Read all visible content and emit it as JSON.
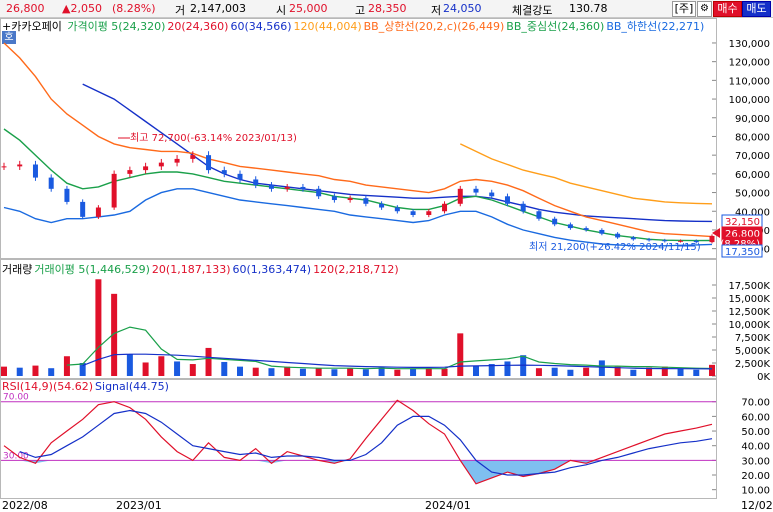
{
  "header": {
    "price": "26,800",
    "change": "▲2,050",
    "change_pct": "(8.28%)",
    "volume_label": "거",
    "volume": "2,147,003",
    "open_label": "시",
    "open": "25,000",
    "high_label": "고",
    "high": "28,350",
    "low_label": "저",
    "low": "24,050",
    "strength_label": "체결강도",
    "strength": "130.78",
    "unit_btn": "[주]",
    "gear_icon": "gear-icon",
    "buy_btn": "매수",
    "sell_btn": "매도"
  },
  "price_panel": {
    "hoga_btn": "호",
    "stock_name": "+카카오페이",
    "legend": [
      {
        "text": "가격이평 5(24,320)",
        "color": "#1aa04a"
      },
      {
        "text": "20(24,360)",
        "color": "#e0102a"
      },
      {
        "text": "60(34,566)",
        "color": "#1530c8"
      },
      {
        "text": "120(44,004)",
        "color": "#ff9e1a"
      },
      {
        "text": "BB_상한선(20,2,c)(26,449)",
        "color": "#ff6a1a"
      },
      {
        "text": "BB_중심선(24,360)",
        "color": "#1aa04a"
      },
      {
        "text": "BB_하한선(22,271)",
        "color": "#1a6ae0"
      }
    ],
    "high_annotation": "최고 72,700(-63.14% 2023/01/13)",
    "low_annotation": "최저 21,200(+26.42% 2024/11/15)",
    "tag_upper": "32,150",
    "tag_price": "26,800",
    "tag_pct": "(8.28%)",
    "tag_lower": "17,350",
    "y_ticks": [
      "130,000",
      "120,000",
      "110,000",
      "100,000",
      "90,000",
      "80,000",
      "70,000",
      "60,000",
      "50,000",
      "40,000",
      "30,000",
      "20,000"
    ]
  },
  "volume_panel": {
    "legend": [
      {
        "text": "거래량",
        "color": "#000000"
      },
      {
        "text": "거래이평 5(1,446,529)",
        "color": "#1aa04a"
      },
      {
        "text": "20(1,187,133)",
        "color": "#e0102a"
      },
      {
        "text": "60(1,363,474)",
        "color": "#1530c8"
      },
      {
        "text": "120(2,218,712)",
        "color": "#e0102a"
      }
    ],
    "y_ticks": [
      "17,500K",
      "15,000K",
      "12,500K",
      "10,000K",
      "7,500K",
      "5,000K",
      "2,500K",
      "0K"
    ]
  },
  "rsi_panel": {
    "legend": [
      {
        "text": "RSI(14,9)(54.62)",
        "color": "#e0102a"
      },
      {
        "text": "Signal(44.75)",
        "color": "#1530c8"
      }
    ],
    "level_high_label": "70.00",
    "level_low_label": "30.00",
    "y_ticks": [
      "70.00",
      "60.00",
      "50.00",
      "40.00",
      "30.00",
      "20.00",
      "10.00"
    ]
  },
  "x_axis": {
    "labels": [
      "2022/08",
      "2023/01",
      "2024/01",
      "12/02"
    ]
  },
  "chart_data": [
    {
      "type": "line",
      "name": "price",
      "ylim": [
        15000,
        138000
      ],
      "y_ticks": [
        130000,
        120000,
        110000,
        100000,
        90000,
        80000,
        70000,
        60000,
        50000,
        40000,
        30000,
        20000
      ],
      "series": [
        {
          "name": "종가",
          "color": "#e0102a",
          "values": [
            64000,
            65000,
            58000,
            52000,
            45000,
            37000,
            42000,
            60000,
            62000,
            64000,
            66000,
            68000,
            70000,
            62000,
            60000,
            57000,
            54000,
            52000,
            53000,
            52000,
            48000,
            46000,
            47000,
            44000,
            42000,
            40000,
            38000,
            40000,
            44000,
            52000,
            50000,
            48000,
            44000,
            40000,
            36000,
            33000,
            31000,
            30000,
            28000,
            26000,
            25000,
            24500,
            24000,
            24200,
            23500,
            26800
          ]
        },
        {
          "name": "120",
          "color": "#ff9e1a",
          "values": [
            null,
            null,
            null,
            null,
            null,
            null,
            null,
            null,
            null,
            null,
            null,
            null,
            null,
            null,
            null,
            null,
            null,
            null,
            null,
            null,
            null,
            null,
            null,
            null,
            null,
            null,
            null,
            null,
            null,
            76000,
            72000,
            68000,
            65000,
            62000,
            60000,
            58000,
            55000,
            53000,
            51000,
            49000,
            47000,
            46000,
            45000,
            44500,
            44200,
            44004
          ]
        },
        {
          "name": "60",
          "color": "#1530c8",
          "values": [
            null,
            null,
            null,
            null,
            null,
            108000,
            104000,
            100000,
            94000,
            88000,
            82000,
            76000,
            70000,
            64000,
            60000,
            57000,
            55000,
            54000,
            53000,
            52000,
            51000,
            50000,
            49000,
            48500,
            48000,
            47500,
            47000,
            47000,
            47500,
            48000,
            48000,
            47000,
            45000,
            43000,
            41000,
            39500,
            38500,
            37500,
            37000,
            36500,
            36000,
            35500,
            35000,
            34800,
            34600,
            34566
          ]
        },
        {
          "name": "BB_상한선",
          "color": "#ff6a1a",
          "values": [
            130000,
            122000,
            112000,
            100000,
            92000,
            86000,
            80000,
            76000,
            74000,
            73000,
            72000,
            72000,
            71000,
            68000,
            66000,
            64000,
            63000,
            62000,
            61000,
            60000,
            59000,
            57000,
            56000,
            54000,
            53000,
            52000,
            51000,
            50000,
            52000,
            56000,
            57000,
            56000,
            54000,
            51000,
            47000,
            43000,
            40000,
            37000,
            35000,
            33000,
            31000,
            29000,
            28000,
            27500,
            27000,
            26449
          ]
        },
        {
          "name": "BB_중심선",
          "color": "#1aa04a",
          "values": [
            84000,
            78000,
            70000,
            62000,
            55000,
            52000,
            53000,
            56000,
            58000,
            60000,
            61000,
            61000,
            60000,
            58000,
            56000,
            55000,
            54000,
            53000,
            52000,
            51000,
            50000,
            48000,
            47000,
            46000,
            44000,
            42000,
            41000,
            41000,
            43000,
            47000,
            48000,
            46000,
            43000,
            40000,
            37000,
            34000,
            32000,
            30000,
            28500,
            27000,
            26000,
            25000,
            24500,
            24400,
            24300,
            24360
          ]
        },
        {
          "name": "BB_하한선",
          "color": "#1a6ae0",
          "values": [
            42000,
            40000,
            36000,
            34000,
            36000,
            36000,
            37000,
            38000,
            40000,
            46000,
            50000,
            52000,
            52000,
            50000,
            48000,
            46000,
            45000,
            44000,
            43000,
            42000,
            41000,
            40000,
            38000,
            37000,
            36000,
            35000,
            34000,
            35000,
            38000,
            40000,
            40000,
            37000,
            33000,
            30000,
            28000,
            26000,
            24500,
            23500,
            22500,
            22000,
            21600,
            21400,
            21500,
            21800,
            22000,
            22271
          ]
        }
      ]
    },
    {
      "type": "bar",
      "name": "volume",
      "ylim": [
        0,
        20000
      ],
      "unit": "K",
      "values": [
        1800,
        1600,
        2000,
        1500,
        3800,
        2500,
        18600,
        15800,
        4200,
        2600,
        3800,
        2800,
        2300,
        5400,
        2700,
        1800,
        1600,
        1500,
        1800,
        1400,
        1500,
        1300,
        1500,
        1300,
        1600,
        1200,
        1400,
        1500,
        1400,
        8200,
        2000,
        2300,
        2800,
        4000,
        1500,
        1600,
        1200,
        1600,
        3000,
        1800,
        1200,
        1600,
        1800,
        1400,
        1200,
        2147
      ],
      "up": [
        true,
        false,
        true,
        false,
        true,
        false,
        true,
        true,
        false,
        true,
        true,
        false,
        true,
        true,
        false,
        false,
        true,
        false,
        true,
        false,
        true,
        false,
        true,
        false,
        false,
        true,
        false,
        true,
        true,
        true,
        false,
        false,
        false,
        false,
        true,
        false,
        false,
        true,
        false,
        true,
        false,
        true,
        true,
        false,
        false,
        true
      ],
      "ma5": [
        null,
        null,
        null,
        null,
        2100,
        2300,
        5500,
        8200,
        9400,
        8800,
        5200,
        3200,
        3100,
        3400,
        3200,
        3000,
        2800,
        1900,
        1700,
        1600,
        1500,
        1500,
        1500,
        1400,
        1500,
        1400,
        1400,
        1400,
        1400,
        2700,
        2900,
        3100,
        3300,
        3800,
        2700,
        2400,
        2200,
        2100,
        1900,
        1900,
        1800,
        1800,
        1700,
        1600,
        1500,
        1447
      ],
      "ma60": [
        null,
        null,
        null,
        null,
        null,
        2000,
        3200,
        4100,
        4200,
        4200,
        4100,
        4000,
        3800,
        3600,
        3400,
        3200,
        3000,
        2800,
        2600,
        2400,
        2200,
        2000,
        1900,
        1800,
        1750,
        1700,
        1650,
        1650,
        1700,
        1900,
        1950,
        2000,
        2050,
        2100,
        2050,
        2000,
        1900,
        1800,
        1700,
        1600,
        1500,
        1450,
        1420,
        1400,
        1380,
        1363
      ]
    },
    {
      "type": "line",
      "name": "rsi",
      "ylim": [
        5,
        78
      ],
      "y_ticks": [
        70,
        60,
        50,
        40,
        30,
        20,
        10
      ],
      "levels": [
        70,
        30
      ],
      "series": [
        {
          "name": "RSI",
          "color": "#e0102a",
          "values": [
            40,
            32,
            28,
            42,
            50,
            58,
            68,
            70,
            66,
            58,
            46,
            36,
            30,
            42,
            32,
            30,
            38,
            28,
            36,
            33,
            30,
            28,
            31,
            45,
            58,
            71,
            64,
            55,
            48,
            30,
            14,
            18,
            22,
            19,
            21,
            24,
            30,
            28,
            32,
            36,
            40,
            44,
            48,
            50,
            52,
            54.62
          ]
        },
        {
          "name": "Signal",
          "color": "#1530c8",
          "values": [
            null,
            36,
            32,
            34,
            40,
            46,
            54,
            62,
            64,
            62,
            56,
            48,
            40,
            38,
            36,
            34,
            35,
            32,
            33,
            33,
            32,
            30,
            30,
            34,
            42,
            54,
            60,
            60,
            54,
            44,
            30,
            22,
            20,
            20,
            21,
            22,
            25,
            27,
            30,
            32,
            35,
            38,
            40,
            42,
            43,
            44.75
          ]
        }
      ]
    }
  ]
}
